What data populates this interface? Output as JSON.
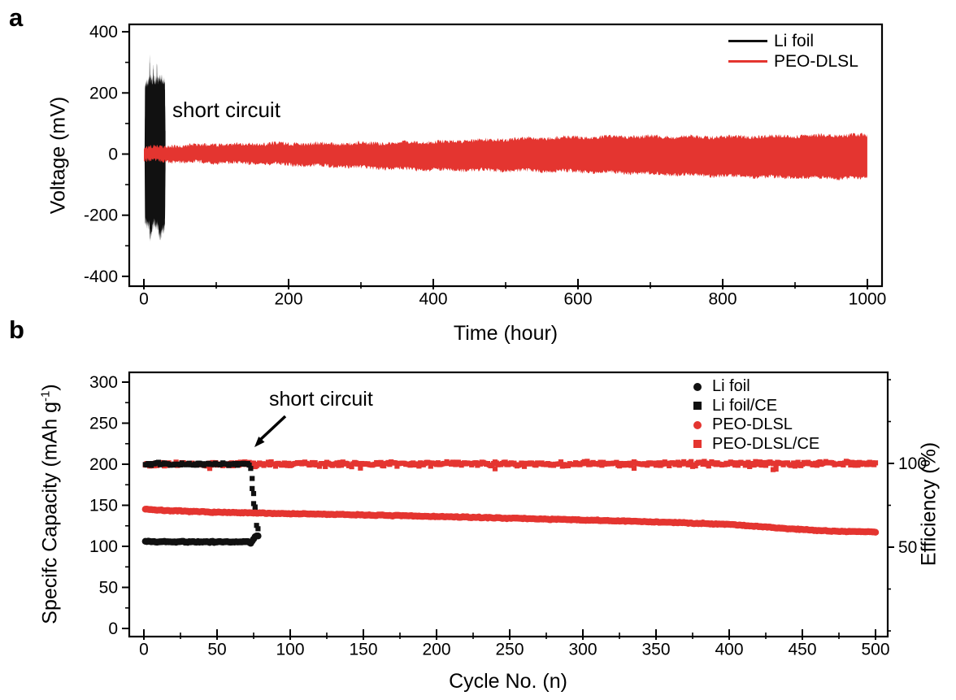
{
  "panels": {
    "a": {
      "letter": "a"
    },
    "b": {
      "letter": "b"
    }
  },
  "colors": {
    "black": "#111111",
    "red": "#e43530",
    "axis": "#000000"
  },
  "chart_data": [
    {
      "id": "a",
      "type": "line",
      "title": "",
      "xlabel": "Time (hour)",
      "ylabel": "Voltage (mV)",
      "xlim": [
        -20,
        1020
      ],
      "ylim": [
        -432,
        424
      ],
      "xticks": [
        0,
        200,
        400,
        600,
        800,
        1000
      ],
      "xminor": [
        100,
        300,
        500,
        700,
        900
      ],
      "yticks": [
        400,
        200,
        0,
        -200,
        -400
      ],
      "yminor": [
        300,
        100,
        -100,
        -300
      ],
      "grid": false,
      "legend_position": "top-right",
      "annotation": {
        "text": "short circuit",
        "x_hour": 43,
        "y_mV": 150
      },
      "legend": [
        {
          "label": "Li foil",
          "color": "#111111",
          "marker": "line"
        },
        {
          "label": "PEO-DLSL",
          "color": "#e43530",
          "marker": "line"
        }
      ],
      "series": [
        {
          "name": "Li foil",
          "color": "#111111",
          "style": "noise-band",
          "x_range_hours": [
            1,
            30
          ],
          "envelope": {
            "t": [
              1,
              1.6,
              6.5,
              7.5,
              8,
              8.5,
              12.4,
              13,
              13.6,
              17.4,
              18,
              18.6,
              22,
              26,
              29,
              30
            ],
            "upper": [
              15,
              225,
              238,
              245,
              322,
              248,
              238,
              292,
              240,
              238,
              286,
              240,
              250,
              242,
              238,
              45
            ],
            "lower": [
              -15,
              -218,
              -238,
              -232,
              -252,
              -278,
              -236,
              -230,
              -226,
              -240,
              -232,
              -236,
              -272,
              -248,
              -242,
              -40
            ]
          },
          "jag_mV": 34
        },
        {
          "name": "PEO-DLSL",
          "color": "#e43530",
          "style": "noise-band",
          "x_range_hours": [
            0,
            1000
          ],
          "envelope": {
            "t": [
              0,
              50,
              150,
              250,
              400,
              550,
              700,
              850,
              950,
              1000
            ],
            "upper": [
              20,
              26,
              30,
              34,
              42,
              50,
              56,
              60,
              62,
              60
            ],
            "lower": [
              -20,
              -27,
              -33,
              -38,
              -48,
              -57,
              -64,
              -71,
              -77,
              -80
            ]
          },
          "jag_mV": 13
        }
      ]
    },
    {
      "id": "b",
      "type": "scatter",
      "title": "",
      "xlabel": "Cycle No. (n)",
      "ylabel_left": "Specifc Capacity (mAh g-1)",
      "ylabel_left_parts": {
        "pre": "Specifc Capacity (mAh g",
        "sup": "-1",
        "post": ")"
      },
      "ylabel_right": "Efficiency (%)",
      "xlim": [
        -10,
        508
      ],
      "ylim_left": [
        -10,
        312
      ],
      "xticks": [
        0,
        50,
        100,
        150,
        200,
        250,
        300,
        350,
        400,
        450,
        500
      ],
      "xminor": [
        25,
        75,
        125,
        175,
        225,
        275,
        325,
        375,
        425,
        475
      ],
      "yticks_left": [
        300,
        250,
        200,
        150,
        100,
        50,
        0
      ],
      "yminor_left": [
        275,
        225,
        175,
        125,
        75,
        25
      ],
      "yticks_right_major": [
        100,
        50
      ],
      "yticks_right_minor": [
        150,
        125,
        75,
        25,
        0
      ],
      "grid": false,
      "legend_position": "top-right",
      "annotation": {
        "text": "short circuit",
        "arrow_to_cycle": 76
      },
      "legend": [
        {
          "label": "Li foil",
          "color": "#111111",
          "marker": "circle"
        },
        {
          "label": "Li foil/CE",
          "color": "#111111",
          "marker": "square"
        },
        {
          "label": "PEO-DLSL",
          "color": "#e43530",
          "marker": "circle"
        },
        {
          "label": "PEO-DLSL/CE",
          "color": "#e43530",
          "marker": "square"
        }
      ],
      "series": [
        {
          "name": "Li foil",
          "axis": "left",
          "marker": "circle",
          "color": "#111111",
          "x_start": 1,
          "x_end": 78,
          "noise": 0.5,
          "keyframes": {
            "x": [
              1,
              10,
              40,
              60,
              70,
              72,
              73,
              74,
              75,
              76,
              77,
              78
            ],
            "y": [
              106,
              105.5,
              105.5,
              105.5,
              105.8,
              105,
              104.2,
              106,
              109,
              111.5,
              113,
              112.5
            ]
          }
        },
        {
          "name": "Li foil/CE",
          "axis": "right",
          "marker": "square",
          "color": "#111111",
          "x_start": 1,
          "x_end": 72,
          "noise": 0.5,
          "keyframes": {
            "x": [
              1,
              72
            ],
            "y": [
              99.6,
              99.6
            ]
          },
          "extra_points": {
            "x": [
              73,
              74,
              74,
              75,
              75,
              76,
              76,
              77,
              78
            ],
            "y": [
              97,
              91,
              85,
              82,
              76,
              74,
              72,
              63,
              61
            ]
          }
        },
        {
          "name": "PEO-DLSL",
          "axis": "left",
          "marker": "circle",
          "color": "#e43530",
          "x_start": 1,
          "x_end": 500,
          "noise": 0.35,
          "keyframes": {
            "x": [
              1,
              10,
              30,
              60,
              100,
              150,
              200,
              250,
              300,
              350,
              400,
              440,
              470,
              500
            ],
            "y": [
              145.5,
              144,
              142.5,
              141,
              139.8,
              138.2,
              136.3,
              134.3,
              132,
              129.7,
              126.8,
              121.5,
              118.5,
              117.5
            ]
          }
        },
        {
          "name": "PEO-DLSL/CE",
          "axis": "right",
          "marker": "square",
          "color": "#e43530",
          "x_start": 1,
          "x_end": 500,
          "noise": 0.85,
          "keyframes": {
            "x": [
              1,
              500
            ],
            "y": [
              99.6,
              99.8
            ]
          },
          "extra_points": {
            "x": [
              45,
              148,
              240,
              335,
              430,
              432
            ],
            "y": [
              97,
              97.2,
              96.8,
              97.1,
              96.3,
              96.6
            ]
          }
        }
      ]
    }
  ]
}
